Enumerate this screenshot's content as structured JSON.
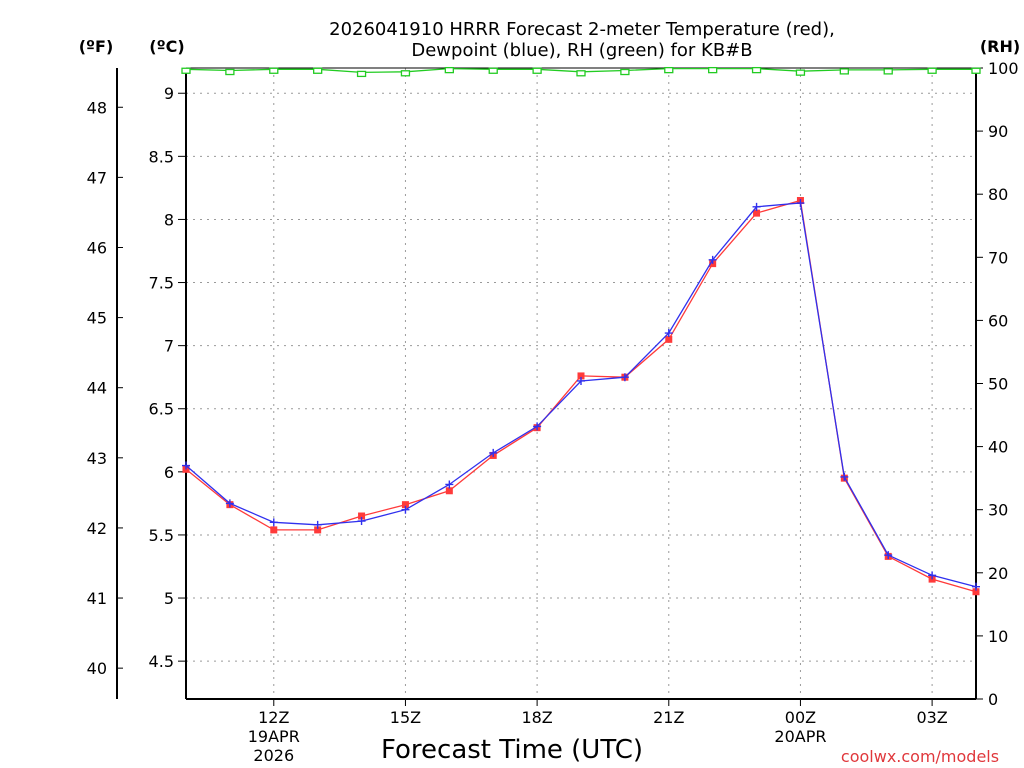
{
  "colors": {
    "temperature": "#ff3a3a",
    "dewpoint": "#3030ee",
    "rh": "#22cc22",
    "grid": "#9a9a9a",
    "credit": "#e0383c"
  },
  "chart_data": {
    "type": "line",
    "title_lines": [
      "2026041910 HRRR Forecast 2-meter Temperature (red),",
      "Dewpoint (blue), RH (green) for KB#B"
    ],
    "xlabel": "Forecast Time (UTC)",
    "units": {
      "fahrenheit": "(ºF)",
      "celsius": "(ºC)",
      "rh": "(RH)"
    },
    "x_hours_range": [
      10,
      28
    ],
    "x_ticks": [
      {
        "hour": 12,
        "label": "12Z",
        "sub": [
          "19APR",
          "2026"
        ]
      },
      {
        "hour": 15,
        "label": "15Z",
        "sub": []
      },
      {
        "hour": 18,
        "label": "18Z",
        "sub": []
      },
      {
        "hour": 21,
        "label": "21Z",
        "sub": []
      },
      {
        "hour": 24,
        "label": "00Z",
        "sub": [
          "20APR"
        ]
      },
      {
        "hour": 27,
        "label": "03Z",
        "sub": []
      }
    ],
    "y_celsius_range": [
      4.2,
      9.2
    ],
    "y_celsius_ticks": [
      "4.5",
      "5",
      "5.5",
      "6",
      "6.5",
      "7",
      "7.5",
      "8",
      "8.5",
      "9"
    ],
    "y_fahrenheit_ticks": [
      "40",
      "41",
      "42",
      "43",
      "44",
      "45",
      "46",
      "47",
      "48"
    ],
    "y_rh_range": [
      0,
      100
    ],
    "y_rh_ticks": [
      "0",
      "10",
      "20",
      "30",
      "40",
      "50",
      "60",
      "70",
      "80",
      "90",
      "100"
    ],
    "hours": [
      10,
      11,
      12,
      13,
      14,
      15,
      16,
      17,
      18,
      19,
      20,
      21,
      22,
      23,
      24,
      25,
      26,
      27,
      28
    ],
    "series": [
      {
        "name": "Temperature",
        "unit": "C",
        "values": [
          6.02,
          5.74,
          5.54,
          5.54,
          5.65,
          5.74,
          5.85,
          6.13,
          6.35,
          6.76,
          6.75,
          7.05,
          7.65,
          8.05,
          8.15,
          5.95,
          5.33,
          5.15,
          5.05
        ]
      },
      {
        "name": "Dewpoint",
        "unit": "C",
        "values": [
          6.05,
          5.75,
          5.6,
          5.58,
          5.61,
          5.7,
          5.9,
          6.15,
          6.36,
          6.72,
          6.75,
          7.1,
          7.68,
          8.1,
          8.13,
          5.96,
          5.34,
          5.18,
          5.09
        ]
      },
      {
        "name": "Relative Humidity",
        "unit": "%",
        "values": [
          99.8,
          99.6,
          99.8,
          99.8,
          99.3,
          99.4,
          99.9,
          99.8,
          99.8,
          99.4,
          99.6,
          99.9,
          99.9,
          99.9,
          99.5,
          99.7,
          99.7,
          99.8,
          99.8
        ]
      }
    ],
    "credit": "coolwx.com/models"
  }
}
